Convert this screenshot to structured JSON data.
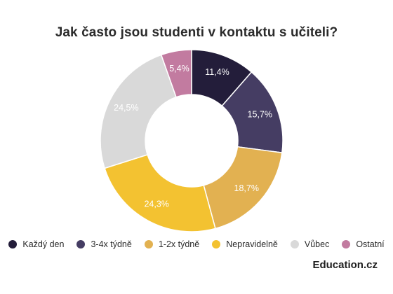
{
  "chart_data": {
    "type": "pie",
    "title": "Jak často jsou studenti v kontaktu s učiteli?",
    "donut": true,
    "series": [
      {
        "name": "Každý den",
        "value": 11.4,
        "label": "11,4%",
        "color": "#231d3a",
        "label_color": "#ffffff"
      },
      {
        "name": "3-4x týdně",
        "value": 15.7,
        "label": "15,7%",
        "color": "#453d63",
        "label_color": "#ffffff"
      },
      {
        "name": "1-2x týdně",
        "value": 18.7,
        "label": "18,7%",
        "color": "#e2b151",
        "label_color": "#ffffff"
      },
      {
        "name": "Nepravidelně",
        "value": 24.3,
        "label": "24,3%",
        "color": "#f3c231",
        "label_color": "#ffffff"
      },
      {
        "name": "Vůbec",
        "value": 24.5,
        "label": "24,5%",
        "color": "#d9d9d9",
        "label_color": "#ffffff"
      },
      {
        "name": "Ostatní",
        "value": 5.4,
        "label": "5,4%",
        "color": "#c27ba0",
        "label_color": "#ffffff"
      }
    ],
    "legend_position": "bottom",
    "start_angle_deg": 0,
    "direction": "clockwise"
  },
  "brand": {
    "name": "Education",
    "suffix": ".cz"
  }
}
